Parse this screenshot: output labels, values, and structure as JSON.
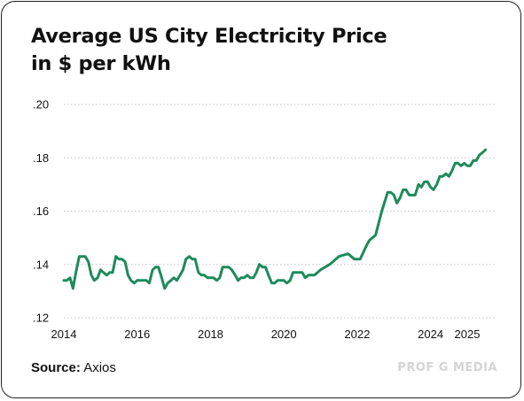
{
  "header": {
    "title_line1": "Average US City Electricity Price",
    "title_line2": "in $ per kWh"
  },
  "footer": {
    "source_label": "Source:",
    "source_value": "Axios",
    "brand": "PROF G MEDIA"
  },
  "colors": {
    "line": "#1e8a5b",
    "grid": "#c4c4c4",
    "text": "#111111",
    "brand": "#d4d4d4"
  },
  "chart_data": {
    "type": "line",
    "title": "Average US City Electricity Price in $ per kWh",
    "xlabel": "",
    "ylabel": "",
    "xlim": [
      2014,
      2025.75
    ],
    "ylim": [
      0.12,
      0.2
    ],
    "yticks": [
      0.12,
      0.14,
      0.16,
      0.18,
      0.2
    ],
    "ytick_labels": [
      ".12",
      ".14",
      ".16",
      ".18",
      ".20"
    ],
    "xticks": [
      2014,
      2016,
      2018,
      2020,
      2022,
      2024,
      2025
    ],
    "xtick_labels": [
      "2014",
      "2016",
      "2018",
      "2020",
      "2022",
      "2024",
      "2025"
    ],
    "grid": true,
    "series": [
      {
        "name": "",
        "x": [
          2014.0,
          2014.08,
          2014.17,
          2014.25,
          2014.33,
          2014.42,
          2014.5,
          2014.58,
          2014.67,
          2014.75,
          2014.83,
          2014.92,
          2015.0,
          2015.08,
          2015.17,
          2015.25,
          2015.33,
          2015.42,
          2015.5,
          2015.58,
          2015.67,
          2015.75,
          2015.83,
          2015.92,
          2016.0,
          2016.08,
          2016.17,
          2016.25,
          2016.33,
          2016.42,
          2016.5,
          2016.58,
          2016.67,
          2016.75,
          2016.83,
          2016.92,
          2017.0,
          2017.08,
          2017.17,
          2017.25,
          2017.33,
          2017.42,
          2017.5,
          2017.58,
          2017.67,
          2017.75,
          2017.83,
          2017.92,
          2018.0,
          2018.08,
          2018.17,
          2018.25,
          2018.33,
          2018.42,
          2018.5,
          2018.58,
          2018.67,
          2018.75,
          2018.83,
          2018.92,
          2019.0,
          2019.08,
          2019.17,
          2019.25,
          2019.33,
          2019.42,
          2019.5,
          2019.58,
          2019.67,
          2019.75,
          2019.83,
          2019.92,
          2020.0,
          2020.08,
          2020.17,
          2020.25,
          2020.33,
          2020.42,
          2020.5,
          2020.58,
          2020.67,
          2020.75,
          2020.83,
          2020.92,
          2021.0,
          2021.25,
          2021.5,
          2021.75,
          2021.92,
          2022.0,
          2022.08,
          2022.25,
          2022.33,
          2022.5,
          2022.67,
          2022.83,
          2022.92,
          2023.0,
          2023.08,
          2023.17,
          2023.25,
          2023.33,
          2023.42,
          2023.5,
          2023.58,
          2023.67,
          2023.75,
          2023.83,
          2023.92,
          2024.0,
          2024.08,
          2024.17,
          2024.25,
          2024.33,
          2024.42,
          2024.5,
          2024.58,
          2024.67,
          2024.75,
          2024.83,
          2024.92,
          2025.0,
          2025.08,
          2025.17,
          2025.25,
          2025.33,
          2025.42,
          2025.5
        ],
        "values": [
          0.134,
          0.134,
          0.135,
          0.131,
          0.137,
          0.143,
          0.143,
          0.143,
          0.141,
          0.136,
          0.134,
          0.135,
          0.138,
          0.137,
          0.136,
          0.137,
          0.137,
          0.143,
          0.142,
          0.142,
          0.141,
          0.136,
          0.134,
          0.133,
          0.134,
          0.134,
          0.134,
          0.134,
          0.133,
          0.138,
          0.139,
          0.139,
          0.135,
          0.131,
          0.133,
          0.134,
          0.135,
          0.134,
          0.136,
          0.138,
          0.142,
          0.143,
          0.142,
          0.142,
          0.137,
          0.136,
          0.136,
          0.135,
          0.135,
          0.135,
          0.134,
          0.135,
          0.139,
          0.139,
          0.139,
          0.138,
          0.136,
          0.134,
          0.135,
          0.135,
          0.136,
          0.135,
          0.135,
          0.137,
          0.14,
          0.139,
          0.139,
          0.136,
          0.133,
          0.133,
          0.134,
          0.134,
          0.134,
          0.133,
          0.134,
          0.137,
          0.137,
          0.137,
          0.137,
          0.135,
          0.136,
          0.136,
          0.136,
          0.137,
          0.138,
          0.14,
          0.143,
          0.144,
          0.142,
          0.142,
          0.142,
          0.147,
          0.149,
          0.151,
          0.16,
          0.167,
          0.167,
          0.166,
          0.163,
          0.165,
          0.168,
          0.168,
          0.166,
          0.166,
          0.166,
          0.17,
          0.169,
          0.171,
          0.171,
          0.169,
          0.168,
          0.17,
          0.173,
          0.173,
          0.174,
          0.173,
          0.175,
          0.178,
          0.178,
          0.177,
          0.178,
          0.177,
          0.177,
          0.179,
          0.179,
          0.181,
          0.182,
          0.183
        ]
      }
    ]
  }
}
